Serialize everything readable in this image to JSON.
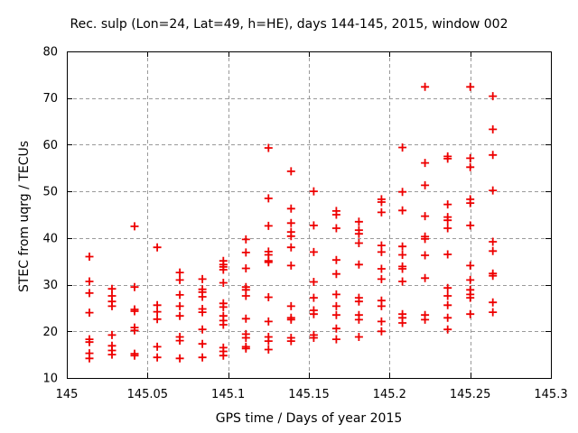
{
  "chart_data": {
    "type": "scatter",
    "title": "Rec. sulp (Lon=24, Lat=49, h=HE), days 144-145, 2015, window 002",
    "xlabel": "GPS time / Days of year 2015",
    "ylabel": "STEC from uqrg / TECUs",
    "xlim": [
      145.0,
      145.3
    ],
    "ylim": [
      10,
      80
    ],
    "xticks": {
      "values": [
        145.0,
        145.05,
        145.1,
        145.15,
        145.2,
        145.25,
        145.3
      ],
      "labels": [
        "145",
        "145.05",
        "145.1",
        "145.15",
        "145.2",
        "145.25",
        "145.3"
      ]
    },
    "yticks": {
      "values": [
        10,
        20,
        30,
        40,
        50,
        60,
        70,
        80
      ],
      "labels": [
        "10",
        "20",
        "30",
        "40",
        "50",
        "60",
        "70",
        "80"
      ]
    },
    "grid": true,
    "legend": "none",
    "marker": {
      "shape": "plus",
      "color": "#ee0000",
      "size": 9
    },
    "series": [
      {
        "name": "STEC",
        "columns": [
          {
            "x": 145.014,
            "y": [
              36.0,
              30.7,
              28.2,
              24.0,
              18.3,
              17.7,
              15.3,
              14.2
            ]
          },
          {
            "x": 145.028,
            "y": [
              29.1,
              27.6,
              26.4,
              25.4,
              19.2,
              16.9,
              15.9,
              15.0
            ]
          },
          {
            "x": 145.042,
            "y": [
              42.5,
              29.5,
              24.7,
              24.3,
              20.8,
              20.2,
              15.2,
              14.8
            ]
          },
          {
            "x": 145.056,
            "y": [
              38.0,
              25.6,
              24.2,
              22.6,
              16.7,
              14.4
            ]
          },
          {
            "x": 145.07,
            "y": [
              32.6,
              31.0,
              27.8,
              25.4,
              23.3,
              18.8,
              18.0,
              14.2
            ]
          },
          {
            "x": 145.084,
            "y": [
              31.2,
              29.0,
              28.4,
              27.4,
              24.8,
              24.1,
              20.4,
              17.3,
              14.4
            ]
          },
          {
            "x": 145.097,
            "y": [
              35.1,
              34.3,
              33.8,
              33.2,
              30.4,
              26.0,
              25.2,
              23.3,
              22.3,
              21.4,
              16.5,
              15.7,
              14.8
            ]
          },
          {
            "x": 145.111,
            "y": [
              39.7,
              36.9,
              33.5,
              29.5,
              28.9,
              27.6,
              22.7,
              19.4,
              18.6,
              16.7,
              16.3
            ]
          },
          {
            "x": 145.125,
            "y": [
              59.3,
              48.5,
              42.6,
              37.1,
              36.4,
              35.1,
              34.8,
              27.3,
              22.1,
              18.8,
              17.9,
              16.1
            ]
          },
          {
            "x": 145.139,
            "y": [
              54.3,
              46.3,
              43.2,
              41.3,
              40.4,
              38.0,
              34.1,
              25.4,
              22.9,
              22.5,
              18.6,
              17.9
            ]
          },
          {
            "x": 145.153,
            "y": [
              50.0,
              42.7,
              37.0,
              30.6,
              27.2,
              24.5,
              23.7,
              19.2,
              18.6
            ]
          },
          {
            "x": 145.167,
            "y": [
              45.8,
              45.0,
              42.1,
              35.3,
              32.3,
              27.9,
              25.4,
              23.5,
              20.6,
              18.3
            ]
          },
          {
            "x": 145.181,
            "y": [
              43.5,
              41.7,
              40.9,
              38.9,
              34.3,
              27.2,
              26.4,
              23.5,
              22.5,
              18.8
            ]
          },
          {
            "x": 145.195,
            "y": [
              48.3,
              47.7,
              45.5,
              38.4,
              37.0,
              33.4,
              31.2,
              26.6,
              25.4,
              22.1,
              20.0
            ]
          },
          {
            "x": 145.208,
            "y": [
              59.4,
              49.9,
              45.9,
              38.2,
              36.4,
              33.9,
              33.4,
              30.7,
              23.7,
              22.9,
              21.8
            ]
          },
          {
            "x": 145.222,
            "y": [
              72.4,
              56.1,
              51.3,
              44.7,
              40.3,
              39.8,
              36.3,
              31.4,
              23.5,
              22.5
            ]
          },
          {
            "x": 145.236,
            "y": [
              57.5,
              57.0,
              47.2,
              44.5,
              43.8,
              42.1,
              36.5,
              29.3,
              27.6,
              25.6,
              22.9,
              20.4
            ]
          },
          {
            "x": 145.25,
            "y": [
              72.4,
              57.1,
              55.2,
              48.3,
              47.5,
              42.7,
              34.1,
              31.0,
              28.9,
              27.9,
              27.2,
              23.7
            ]
          },
          {
            "x": 145.264,
            "y": [
              70.4,
              63.3,
              57.8,
              50.2,
              39.2,
              37.2,
              32.4,
              31.9,
              26.2,
              24.1
            ]
          }
        ]
      }
    ]
  },
  "colors": {
    "marker": "#ee0000",
    "grid": "#9a9a9a",
    "border": "#000000",
    "background": "#ffffff",
    "text": "#000000"
  }
}
